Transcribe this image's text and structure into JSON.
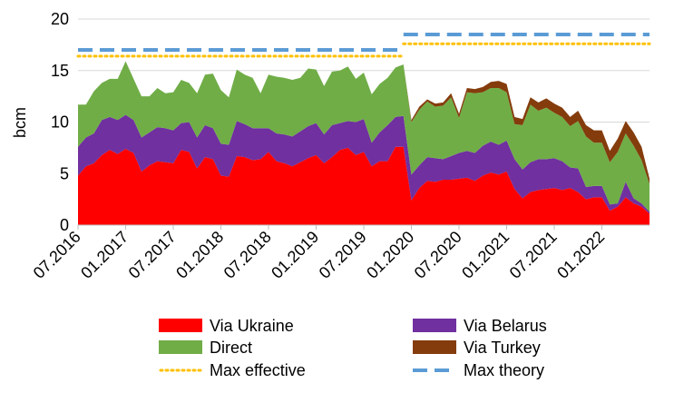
{
  "chart_data": {
    "type": "area",
    "ylabel": "bcm",
    "xlabel": "",
    "title": "",
    "ylim": [
      0,
      20
    ],
    "yticks": [
      "0",
      "5",
      "10",
      "15",
      "20"
    ],
    "x_tick_labels": [
      "07.2016",
      "01.2017",
      "07.2017",
      "01.2018",
      "07.2018",
      "01.2019",
      "07.2019",
      "01.2020",
      "07.2020",
      "01.2021",
      "07.2021",
      "01.2022"
    ],
    "x_tick_months": [
      0,
      6,
      12,
      18,
      24,
      30,
      36,
      42,
      48,
      54,
      60,
      66
    ],
    "x_start": "07.2016",
    "months": [
      "07.2016",
      "08.2016",
      "09.2016",
      "10.2016",
      "11.2016",
      "12.2016",
      "01.2017",
      "02.2017",
      "03.2017",
      "04.2017",
      "05.2017",
      "06.2017",
      "07.2017",
      "08.2017",
      "09.2017",
      "10.2017",
      "11.2017",
      "12.2017",
      "01.2018",
      "02.2018",
      "03.2018",
      "04.2018",
      "05.2018",
      "06.2018",
      "07.2018",
      "08.2018",
      "09.2018",
      "10.2018",
      "11.2018",
      "12.2018",
      "01.2019",
      "02.2019",
      "03.2019",
      "04.2019",
      "05.2019",
      "06.2019",
      "07.2019",
      "08.2019",
      "09.2019",
      "10.2019",
      "11.2019",
      "12.2019",
      "01.2020",
      "02.2020",
      "03.2020",
      "04.2020",
      "05.2020",
      "06.2020",
      "07.2020",
      "08.2020",
      "09.2020",
      "10.2020",
      "11.2020",
      "12.2020",
      "01.2021",
      "02.2021",
      "03.2021",
      "04.2021",
      "05.2021",
      "06.2021",
      "07.2021",
      "08.2021",
      "09.2021",
      "10.2021",
      "11.2021",
      "12.2021",
      "01.2022",
      "02.2022",
      "03.2022",
      "04.2022",
      "05.2022",
      "06.2022",
      "07.2022"
    ],
    "series": [
      {
        "name": "Via Ukraine",
        "color": "#ff0000",
        "values": [
          4.8,
          5.7,
          6.0,
          6.8,
          7.3,
          6.9,
          7.4,
          7.0,
          5.2,
          5.8,
          6.2,
          6.1,
          6.0,
          7.3,
          7.1,
          5.5,
          6.6,
          6.4,
          4.8,
          4.7,
          6.7,
          6.6,
          6.3,
          6.4,
          7.1,
          6.2,
          6.0,
          5.7,
          6.1,
          6.5,
          6.8,
          6.0,
          6.6,
          7.3,
          7.5,
          6.8,
          7.1,
          5.7,
          6.2,
          6.2,
          7.6,
          7.6,
          2.4,
          3.6,
          4.3,
          4.2,
          4.4,
          4.4,
          4.5,
          4.6,
          4.3,
          4.8,
          5.1,
          4.9,
          5.2,
          3.5,
          2.6,
          3.2,
          3.4,
          3.5,
          3.6,
          3.4,
          3.6,
          3.2,
          2.5,
          2.7,
          2.7,
          1.4,
          1.8,
          2.7,
          2.1,
          1.8,
          1.1
        ]
      },
      {
        "name": "Via Belarus",
        "color": "#7030a0",
        "values": [
          2.8,
          2.8,
          2.9,
          3.4,
          3.2,
          3.3,
          3.3,
          3.2,
          3.3,
          3.2,
          3.3,
          3.3,
          3.2,
          2.6,
          2.9,
          3.0,
          3.1,
          3.0,
          3.1,
          3.1,
          3.4,
          3.2,
          3.1,
          3.0,
          2.3,
          2.7,
          2.8,
          2.9,
          3.0,
          3.1,
          3.1,
          2.8,
          3.1,
          2.6,
          2.6,
          3.2,
          3.2,
          2.3,
          2.8,
          3.5,
          2.9,
          3.0,
          2.5,
          2.2,
          2.3,
          2.3,
          2.0,
          2.3,
          2.5,
          2.6,
          2.7,
          2.9,
          3.0,
          2.9,
          3.0,
          2.9,
          2.8,
          2.9,
          3.0,
          2.9,
          2.9,
          2.8,
          2.0,
          2.3,
          1.2,
          1.1,
          1.1,
          0.6,
          0.3,
          1.5,
          0.5,
          0.3,
          0.2
        ]
      },
      {
        "name": "Direct",
        "color": "#70ad47",
        "values": [
          4.1,
          3.2,
          4.1,
          3.6,
          3.7,
          4.0,
          5.2,
          4.0,
          4.0,
          3.5,
          3.8,
          3.4,
          3.7,
          4.2,
          3.8,
          4.3,
          4.9,
          5.3,
          5.2,
          4.6,
          5.0,
          4.8,
          4.9,
          3.4,
          5.2,
          5.5,
          5.5,
          5.5,
          5.2,
          5.6,
          5.2,
          4.7,
          5.2,
          5.1,
          5.3,
          4.2,
          4.5,
          4.7,
          4.7,
          4.6,
          4.8,
          5.0,
          5.1,
          5.4,
          5.4,
          5.0,
          5.2,
          5.7,
          3.4,
          5.7,
          5.8,
          5.2,
          5.2,
          5.5,
          4.7,
          3.4,
          4.3,
          5.6,
          4.7,
          5.0,
          4.4,
          4.3,
          4.0,
          4.6,
          4.9,
          4.2,
          4.2,
          4.1,
          5.0,
          4.7,
          5.1,
          4.2,
          2.7
        ]
      },
      {
        "name": "Via Turkey",
        "color": "#843c0c",
        "values": [
          0,
          0,
          0,
          0,
          0,
          0,
          0,
          0,
          0,
          0,
          0,
          0,
          0,
          0,
          0,
          0,
          0,
          0,
          0,
          0,
          0,
          0,
          0,
          0,
          0,
          0,
          0,
          0,
          0,
          0,
          0,
          0,
          0,
          0,
          0,
          0,
          0,
          0,
          0,
          0,
          0,
          0,
          0.2,
          0.3,
          0.2,
          0.3,
          0.3,
          0.4,
          0.4,
          0.4,
          0.4,
          0.5,
          0.6,
          0.7,
          0.8,
          0.7,
          0.6,
          0.7,
          0.8,
          0.9,
          0.9,
          0.9,
          0.9,
          1.0,
          1.1,
          1.2,
          1.2,
          1.1,
          1.3,
          1.2,
          1.3,
          1.3,
          0.5
        ]
      }
    ],
    "reference_lines": [
      {
        "name": "Max effective",
        "color": "#ffc000",
        "style": "dotted",
        "segments": [
          {
            "from": 0,
            "to": 41,
            "value": 16.4
          },
          {
            "from": 41,
            "to": 72,
            "value": 17.6
          }
        ]
      },
      {
        "name": "Max theory",
        "color": "#5b9bd5",
        "style": "dashed",
        "segments": [
          {
            "from": 0,
            "to": 41,
            "value": 17.0
          },
          {
            "from": 41,
            "to": 72,
            "value": 18.5
          }
        ]
      }
    ],
    "grid": true,
    "legend_position": "bottom",
    "legend_order": [
      "Via Ukraine",
      "Via Belarus",
      "Direct",
      "Via Turkey",
      "Max effective",
      "Max theory"
    ]
  }
}
